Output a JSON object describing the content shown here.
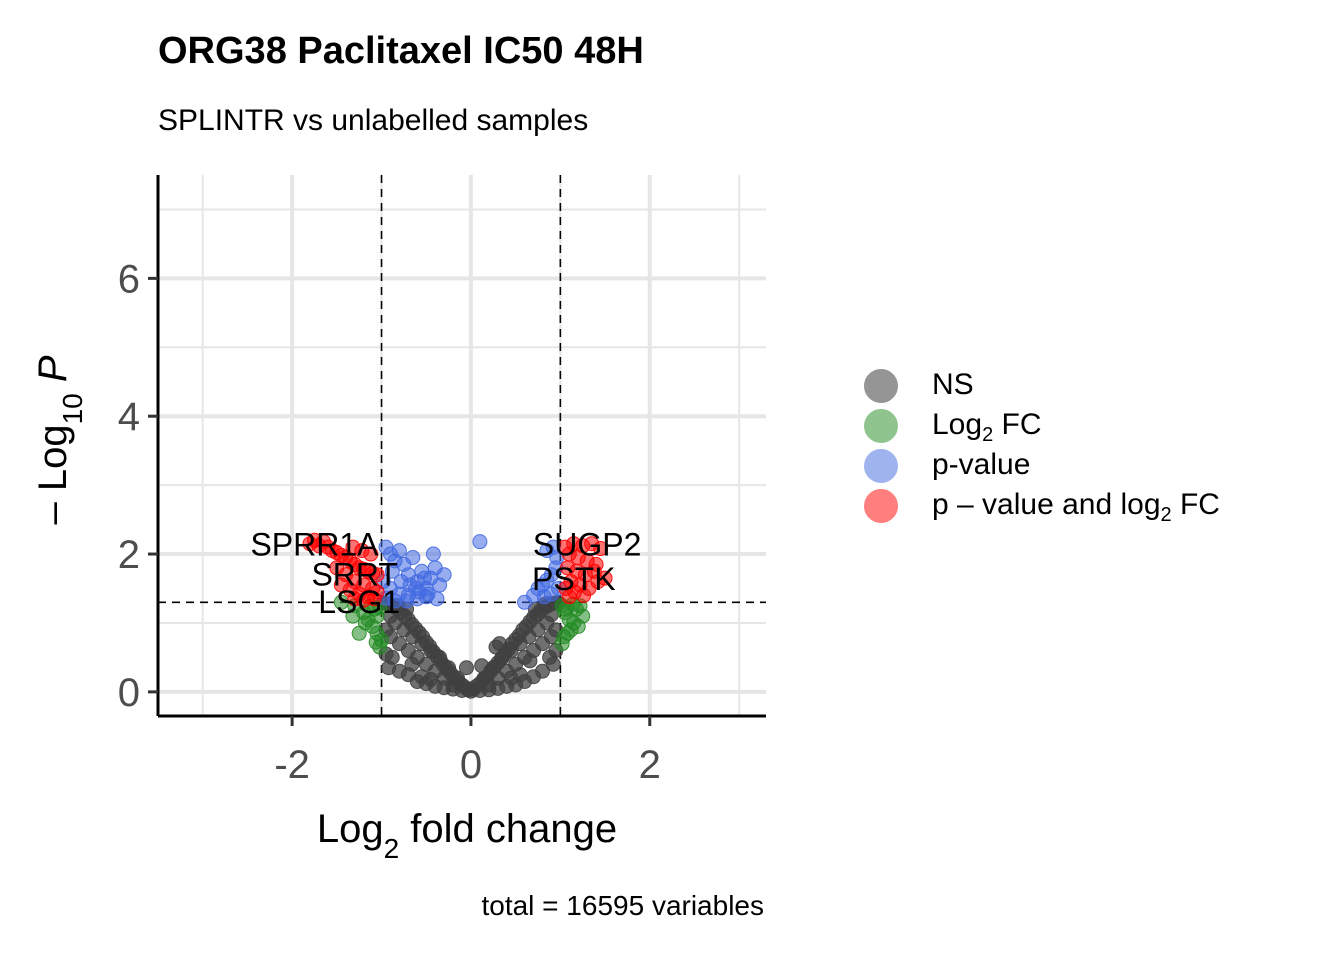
{
  "header": {
    "title": "ORG38 Paclitaxel IC50 48H",
    "subtitle": "SPLINTR vs unlabelled samples"
  },
  "caption": "total = 16595 variables",
  "legend": [
    {
      "key": "ns",
      "pre": "NS",
      "sub": "",
      "post": "",
      "color": "#404040"
    },
    {
      "key": "log2fc",
      "pre": "Log",
      "sub": "2",
      "post": " FC",
      "color": "#228B22"
    },
    {
      "key": "pvalue",
      "pre": "p-value",
      "sub": "",
      "post": "",
      "color": "#4169E1"
    },
    {
      "key": "both",
      "pre": "p – value and log",
      "sub": "2",
      "post": " FC",
      "color": "#FF0000"
    }
  ],
  "chart_data": {
    "type": "scatter",
    "title": "ORG38 Paclitaxel IC50 48H",
    "subtitle": "SPLINTR vs unlabelled samples",
    "caption": "total = 16595 variables",
    "xlabel": {
      "pre": "Log",
      "sub": "2",
      "post": " fold change"
    },
    "ylabel": {
      "pre": "– Log",
      "sub": "10",
      "post": " P"
    },
    "xlim": [
      -3.5,
      3.3
    ],
    "ylim": [
      -0.35,
      7.5
    ],
    "xticks": [
      -2,
      0,
      2
    ],
    "xtick_labels": [
      "-2",
      "0",
      "2"
    ],
    "yticks": [
      0,
      2,
      4,
      6
    ],
    "ytick_labels": [
      "0",
      "2",
      "4",
      "6"
    ],
    "grid": true,
    "legend_position": "right",
    "cutoffs": {
      "log2fc": [
        -1,
        1
      ],
      "neg_log10_p": 1.3
    },
    "colors": {
      "ns": "#404040",
      "log2fc": "#228B22",
      "pvalue": "#4169E1",
      "both": "#FF0000"
    },
    "total_variables": 16595,
    "labeled_points": [
      {
        "label": "SPRR1A",
        "x": -1.75,
        "y": 2.15,
        "group": "both"
      },
      {
        "label": "SRRT",
        "x": -1.3,
        "y": 1.72,
        "group": "both"
      },
      {
        "label": "LSG1",
        "x": -1.25,
        "y": 1.32,
        "group": "both"
      },
      {
        "label": "SUGP2",
        "x": 1.3,
        "y": 2.15,
        "group": "both"
      },
      {
        "label": "PSTK",
        "x": 1.15,
        "y": 1.65,
        "group": "both"
      }
    ],
    "series": [
      {
        "name": "p – value and log2 FC",
        "group": "both",
        "points": [
          [
            -1.8,
            2.15
          ],
          [
            -1.7,
            2.12
          ],
          [
            -1.6,
            2.1
          ],
          [
            -1.55,
            2.05
          ],
          [
            -1.5,
            2.02
          ],
          [
            -1.45,
            1.98
          ],
          [
            -1.4,
            1.95
          ],
          [
            -1.35,
            1.9
          ],
          [
            -1.3,
            1.85
          ],
          [
            -1.25,
            1.8
          ],
          [
            -1.2,
            1.78
          ],
          [
            -1.15,
            1.75
          ],
          [
            -1.1,
            1.72
          ],
          [
            -1.05,
            1.7
          ],
          [
            -1.5,
            1.8
          ],
          [
            -1.4,
            1.7
          ],
          [
            -1.3,
            1.6
          ],
          [
            -1.2,
            1.55
          ],
          [
            -1.1,
            1.5
          ],
          [
            -1.05,
            1.45
          ],
          [
            -1.45,
            1.55
          ],
          [
            -1.35,
            1.48
          ],
          [
            -1.25,
            1.42
          ],
          [
            -1.15,
            1.38
          ],
          [
            -1.08,
            1.35
          ],
          [
            -1.3,
            1.35
          ],
          [
            -1.2,
            1.33
          ],
          [
            -1.12,
            2.0
          ],
          [
            -1.22,
            2.05
          ],
          [
            -1.32,
            2.1
          ],
          [
            -1.65,
            2.18
          ],
          [
            -1.75,
            2.2
          ],
          [
            1.05,
            2.1
          ],
          [
            1.15,
            2.15
          ],
          [
            1.25,
            2.12
          ],
          [
            1.35,
            2.15
          ],
          [
            1.45,
            2.08
          ],
          [
            1.1,
            2.0
          ],
          [
            1.2,
            1.95
          ],
          [
            1.3,
            1.9
          ],
          [
            1.4,
            1.85
          ],
          [
            1.08,
            1.8
          ],
          [
            1.18,
            1.75
          ],
          [
            1.28,
            1.7
          ],
          [
            1.12,
            1.6
          ],
          [
            1.22,
            1.55
          ],
          [
            1.32,
            1.5
          ],
          [
            1.06,
            1.5
          ],
          [
            1.16,
            1.45
          ],
          [
            1.26,
            1.4
          ],
          [
            1.1,
            1.38
          ],
          [
            1.5,
            1.65
          ],
          [
            1.42,
            1.6
          ],
          [
            1.38,
            1.75
          ]
        ]
      },
      {
        "name": "p-value",
        "group": "pvalue",
        "points": [
          [
            0.1,
            2.18
          ],
          [
            -0.95,
            2.1
          ],
          [
            -0.9,
            2.0
          ],
          [
            -0.85,
            1.9
          ],
          [
            -0.8,
            2.05
          ],
          [
            -0.75,
            1.85
          ],
          [
            -0.7,
            1.7
          ],
          [
            -0.65,
            1.95
          ],
          [
            -0.6,
            1.6
          ],
          [
            -0.55,
            1.75
          ],
          [
            -0.5,
            1.5
          ],
          [
            -0.45,
            1.65
          ],
          [
            -0.4,
            1.8
          ],
          [
            -0.35,
            1.55
          ],
          [
            -0.3,
            1.7
          ],
          [
            -0.42,
            2.0
          ],
          [
            -0.5,
            1.38
          ],
          [
            -0.6,
            1.35
          ],
          [
            -0.7,
            1.4
          ],
          [
            -0.8,
            1.42
          ],
          [
            -0.9,
            1.5
          ],
          [
            -0.98,
            1.6
          ],
          [
            -0.88,
            1.75
          ],
          [
            -0.78,
            1.6
          ],
          [
            -0.68,
            1.55
          ],
          [
            -0.58,
            1.45
          ],
          [
            -0.48,
            1.42
          ],
          [
            -0.38,
            1.35
          ],
          [
            -0.95,
            1.36
          ],
          [
            -0.85,
            1.32
          ],
          [
            -0.72,
            1.32
          ],
          [
            -0.62,
            1.5
          ],
          [
            -0.52,
            1.65
          ],
          [
            0.6,
            1.3
          ],
          [
            0.7,
            1.4
          ],
          [
            0.75,
            1.5
          ],
          [
            0.8,
            1.55
          ],
          [
            0.85,
            1.62
          ],
          [
            0.9,
            1.7
          ],
          [
            0.95,
            1.8
          ],
          [
            0.92,
            2.1
          ],
          [
            0.85,
            2.05
          ],
          [
            0.82,
            1.38
          ],
          [
            0.9,
            1.42
          ],
          [
            0.98,
            1.5
          ],
          [
            0.96,
            1.95
          ]
        ]
      },
      {
        "name": "Log2 FC",
        "group": "log2fc",
        "points": [
          [
            -1.45,
            1.3
          ],
          [
            -1.3,
            1.25
          ],
          [
            -1.2,
            1.15
          ],
          [
            -1.15,
            1.05
          ],
          [
            -1.1,
            0.95
          ],
          [
            -1.05,
            0.85
          ],
          [
            -1.0,
            0.75
          ],
          [
            -1.02,
            0.65
          ],
          [
            -1.25,
            0.85
          ],
          [
            -1.12,
            1.25
          ],
          [
            -1.08,
            1.2
          ],
          [
            -1.18,
            1.0
          ],
          [
            -1.05,
            1.1
          ],
          [
            -1.02,
            1.22
          ],
          [
            -1.06,
            0.72
          ],
          [
            -1.32,
            1.1
          ],
          [
            1.02,
            1.25
          ],
          [
            1.05,
            1.15
          ],
          [
            1.1,
            1.05
          ],
          [
            1.15,
            1.0
          ],
          [
            1.2,
            0.95
          ],
          [
            1.12,
            0.9
          ],
          [
            1.08,
            0.85
          ],
          [
            1.04,
            0.8
          ],
          [
            1.02,
            0.7
          ],
          [
            1.18,
            1.2
          ],
          [
            1.25,
            1.1
          ],
          [
            1.06,
            1.2
          ],
          [
            1.14,
            1.27
          ],
          [
            1.22,
            1.25
          ]
        ]
      },
      {
        "name": "NS",
        "group": "ns",
        "points": [
          [
            0.0,
            0.01
          ],
          [
            -0.03,
            0.03
          ],
          [
            0.03,
            0.04
          ],
          [
            -0.06,
            0.06
          ],
          [
            0.06,
            0.08
          ],
          [
            -0.1,
            0.1
          ],
          [
            0.1,
            0.12
          ],
          [
            -0.14,
            0.15
          ],
          [
            0.14,
            0.18
          ],
          [
            -0.18,
            0.2
          ],
          [
            0.18,
            0.22
          ],
          [
            -0.22,
            0.26
          ],
          [
            0.22,
            0.3
          ],
          [
            -0.26,
            0.32
          ],
          [
            0.26,
            0.36
          ],
          [
            -0.3,
            0.38
          ],
          [
            0.3,
            0.42
          ],
          [
            -0.34,
            0.45
          ],
          [
            0.34,
            0.48
          ],
          [
            -0.38,
            0.52
          ],
          [
            0.38,
            0.55
          ],
          [
            -0.42,
            0.58
          ],
          [
            0.42,
            0.62
          ],
          [
            -0.46,
            0.66
          ],
          [
            0.46,
            0.7
          ],
          [
            -0.5,
            0.72
          ],
          [
            0.5,
            0.76
          ],
          [
            -0.54,
            0.8
          ],
          [
            0.54,
            0.82
          ],
          [
            -0.58,
            0.86
          ],
          [
            0.58,
            0.9
          ],
          [
            -0.62,
            0.92
          ],
          [
            0.62,
            0.95
          ],
          [
            -0.66,
            0.98
          ],
          [
            0.66,
            1.02
          ],
          [
            -0.7,
            1.05
          ],
          [
            0.7,
            1.08
          ],
          [
            -0.74,
            1.1
          ],
          [
            0.74,
            1.12
          ],
          [
            -0.78,
            1.15
          ],
          [
            0.78,
            1.18
          ],
          [
            -0.82,
            1.2
          ],
          [
            0.82,
            1.22
          ],
          [
            -0.86,
            1.24
          ],
          [
            0.86,
            1.25
          ],
          [
            -0.9,
            1.27
          ],
          [
            0.9,
            1.28
          ],
          [
            -0.94,
            1.28
          ],
          [
            0.94,
            1.29
          ],
          [
            -0.98,
            1.29
          ],
          [
            0.98,
            1.29
          ],
          [
            -0.2,
            0.1
          ],
          [
            -0.3,
            0.2
          ],
          [
            -0.4,
            0.3
          ],
          [
            -0.5,
            0.4
          ],
          [
            -0.6,
            0.5
          ],
          [
            -0.7,
            0.6
          ],
          [
            -0.8,
            0.7
          ],
          [
            -0.9,
            0.8
          ],
          [
            -0.95,
            0.9
          ],
          [
            -0.85,
            1.0
          ],
          [
            -0.75,
            0.9
          ],
          [
            -0.65,
            0.8
          ],
          [
            -0.55,
            0.7
          ],
          [
            -0.45,
            0.6
          ],
          [
            -0.35,
            0.5
          ],
          [
            -0.25,
            0.35
          ],
          [
            -0.15,
            0.2
          ],
          [
            0.2,
            0.1
          ],
          [
            0.3,
            0.2
          ],
          [
            0.4,
            0.3
          ],
          [
            0.5,
            0.4
          ],
          [
            0.6,
            0.5
          ],
          [
            0.7,
            0.6
          ],
          [
            0.8,
            0.7
          ],
          [
            0.9,
            0.8
          ],
          [
            0.95,
            0.9
          ],
          [
            0.85,
            1.0
          ],
          [
            0.75,
            0.9
          ],
          [
            0.65,
            0.8
          ],
          [
            0.55,
            0.7
          ],
          [
            0.45,
            0.6
          ],
          [
            0.35,
            0.5
          ],
          [
            0.25,
            0.35
          ],
          [
            0.15,
            0.2
          ],
          [
            -0.95,
            0.55
          ],
          [
            -0.92,
            0.35
          ],
          [
            -0.9,
            1.1
          ],
          [
            -0.88,
            0.5
          ],
          [
            -0.8,
            0.3
          ],
          [
            -0.7,
            0.25
          ],
          [
            -0.6,
            0.15
          ],
          [
            -0.5,
            0.12
          ],
          [
            -0.4,
            0.08
          ],
          [
            -0.3,
            0.06
          ],
          [
            -0.2,
            0.04
          ],
          [
            -0.1,
            0.02
          ],
          [
            0.95,
            0.6
          ],
          [
            0.92,
            0.4
          ],
          [
            0.9,
            1.12
          ],
          [
            0.88,
            0.5
          ],
          [
            0.8,
            0.3
          ],
          [
            0.7,
            0.22
          ],
          [
            0.6,
            0.15
          ],
          [
            0.5,
            0.1
          ],
          [
            0.4,
            0.08
          ],
          [
            0.3,
            0.05
          ],
          [
            0.2,
            0.03
          ],
          [
            0.1,
            0.02
          ],
          [
            -0.05,
            0.35
          ],
          [
            0.12,
            0.38
          ],
          [
            0.28,
            0.65
          ],
          [
            0.32,
            0.7
          ],
          [
            -0.72,
            1.2
          ],
          [
            -0.82,
            1.25
          ],
          [
            0.72,
            1.2
          ],
          [
            0.84,
            1.28
          ],
          [
            -0.66,
            0.4
          ],
          [
            0.66,
            0.45
          ],
          [
            -0.55,
            0.22
          ],
          [
            0.55,
            0.25
          ],
          [
            -0.45,
            0.18
          ],
          [
            0.45,
            0.2
          ]
        ]
      }
    ]
  }
}
